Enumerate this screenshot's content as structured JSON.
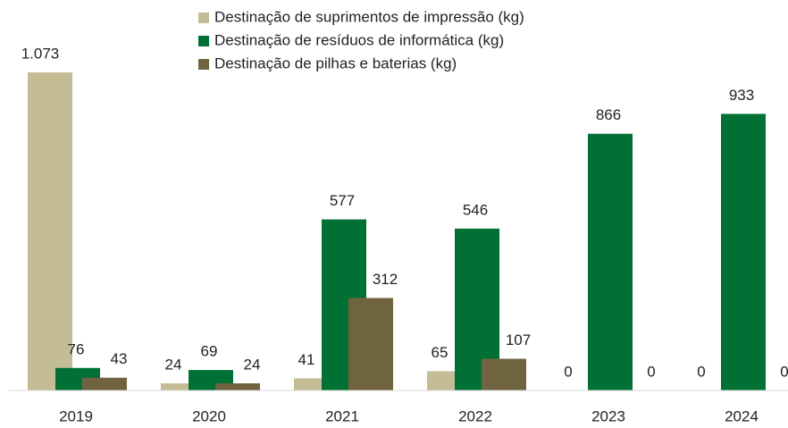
{
  "chart_data": {
    "type": "bar",
    "categories": [
      "2019",
      "2020",
      "2021",
      "2022",
      "2023",
      "2024"
    ],
    "series": [
      {
        "name": "Destinação de suprimentos de impressão (kg)",
        "color": "#c4bc94",
        "values": [
          1073,
          24,
          41,
          65,
          0,
          0
        ],
        "value_labels": [
          "1.073",
          "24",
          "41",
          "65",
          "0",
          "0"
        ]
      },
      {
        "name": "Destinação de resíduos de informática (kg)",
        "color": "#007034",
        "values": [
          76,
          69,
          577,
          546,
          866,
          933
        ]
      },
      {
        "name": "Destinação de pilhas e baterias (kg)",
        "color": "#706440",
        "values": [
          43,
          24,
          312,
          107,
          0,
          0
        ]
      }
    ],
    "legend": "top"
  }
}
